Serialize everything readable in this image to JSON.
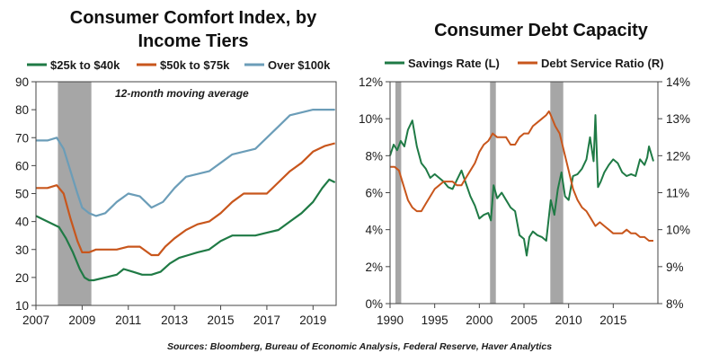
{
  "source_note": "Sources: Bloomberg, Bureau of Economic Analysis, Federal Reserve, Haver Analytics",
  "colors": {
    "green": "#1f7a45",
    "orange": "#c8561c",
    "blue": "#6b9db8",
    "recession": "#a6a6a6"
  },
  "chart_data": [
    {
      "type": "line",
      "title_lines": [
        "Consumer Comfort Index, by",
        "Income Tiers"
      ],
      "annotation": "12-month moving average",
      "xlim": [
        2007,
        2020
      ],
      "ylim": [
        10,
        90
      ],
      "x_ticks": [
        2007,
        2009,
        2011,
        2013,
        2015,
        2017,
        2019
      ],
      "x_tick_labels": [
        "2007",
        "2009",
        "2011",
        "2013",
        "2015",
        "2017",
        "2019"
      ],
      "y_ticks": [
        10,
        20,
        30,
        40,
        50,
        60,
        70,
        80,
        90
      ],
      "y_tick_labels": [
        "10",
        "20",
        "30",
        "40",
        "50",
        "60",
        "70",
        "80",
        "90"
      ],
      "legend_position": "top",
      "recessions": [
        [
          2007.95,
          2009.4
        ]
      ],
      "series": [
        {
          "name": "$25k to $40k",
          "color": "green",
          "x": [
            2007.0,
            2007.5,
            2008.0,
            2008.3,
            2008.6,
            2008.9,
            2009.1,
            2009.3,
            2009.5,
            2010.0,
            2010.5,
            2010.8,
            2011.2,
            2011.6,
            2012.0,
            2012.4,
            2012.8,
            2013.2,
            2013.6,
            2014.0,
            2014.5,
            2015.0,
            2015.5,
            2016.0,
            2016.5,
            2017.0,
            2017.5,
            2018.0,
            2018.5,
            2019.0,
            2019.4,
            2019.7,
            2019.95
          ],
          "y": [
            42,
            40,
            38,
            34,
            29,
            23,
            20,
            19,
            19,
            20,
            21,
            23,
            22,
            21,
            21,
            22,
            25,
            27,
            28,
            29,
            30,
            33,
            35,
            35,
            35,
            36,
            37,
            40,
            43,
            47,
            52,
            55,
            54
          ]
        },
        {
          "name": "$50k to $75k",
          "color": "orange",
          "x": [
            2007.0,
            2007.5,
            2007.9,
            2008.2,
            2008.5,
            2008.8,
            2009.0,
            2009.3,
            2009.6,
            2010.0,
            2010.5,
            2011.0,
            2011.5,
            2012.0,
            2012.3,
            2012.6,
            2013.0,
            2013.5,
            2014.0,
            2014.5,
            2015.0,
            2015.5,
            2016.0,
            2016.5,
            2017.0,
            2017.5,
            2018.0,
            2018.5,
            2019.0,
            2019.5,
            2019.95
          ],
          "y": [
            52,
            52,
            53,
            50,
            41,
            33,
            29,
            29,
            30,
            30,
            30,
            31,
            31,
            28,
            28,
            31,
            34,
            37,
            39,
            40,
            43,
            47,
            50,
            50,
            50,
            54,
            58,
            61,
            65,
            67,
            68
          ]
        },
        {
          "name": "Over $100k",
          "color": "blue",
          "x": [
            2007.0,
            2007.5,
            2007.9,
            2008.2,
            2008.5,
            2008.8,
            2009.0,
            2009.3,
            2009.6,
            2010.0,
            2010.5,
            2011.0,
            2011.5,
            2012.0,
            2012.5,
            2013.0,
            2013.5,
            2014.0,
            2014.5,
            2015.0,
            2015.5,
            2016.0,
            2016.5,
            2017.0,
            2017.5,
            2018.0,
            2018.5,
            2019.0,
            2019.5,
            2019.95
          ],
          "y": [
            69,
            69,
            70,
            66,
            58,
            50,
            45,
            43,
            42,
            43,
            47,
            50,
            49,
            45,
            47,
            52,
            56,
            57,
            58,
            61,
            64,
            65,
            66,
            70,
            74,
            78,
            79,
            80,
            80,
            80
          ]
        }
      ]
    },
    {
      "type": "line",
      "title": "Consumer Debt Capacity",
      "xlim": [
        1990,
        2020
      ],
      "x_ticks": [
        1990,
        1995,
        2000,
        2005,
        2010,
        2015
      ],
      "x_tick_labels": [
        "1990",
        "1995",
        "2000",
        "2005",
        "2010",
        "2015"
      ],
      "ylim_left": [
        0,
        12
      ],
      "ylim_right": [
        8,
        14
      ],
      "left_ticks": [
        0,
        2,
        4,
        6,
        8,
        10,
        12
      ],
      "left_tick_labels": [
        "0%",
        "2%",
        "4%",
        "6%",
        "8%",
        "10%",
        "12%"
      ],
      "right_ticks": [
        8,
        9,
        10,
        11,
        12,
        13,
        14
      ],
      "right_tick_labels": [
        "8%",
        "9%",
        "10%",
        "11%",
        "12%",
        "13%",
        "14%"
      ],
      "legend_position": "top",
      "recessions": [
        [
          1990.6,
          1991.25
        ],
        [
          2001.2,
          2001.85
        ],
        [
          2007.95,
          2009.4
        ]
      ],
      "series": [
        {
          "name": "Savings Rate (L)",
          "color": "green",
          "axis": "left",
          "x": [
            1990.0,
            1990.4,
            1990.8,
            1991.2,
            1991.6,
            1992.0,
            1992.5,
            1993.0,
            1993.5,
            1994.0,
            1994.5,
            1995.0,
            1995.5,
            1996.0,
            1996.5,
            1997.0,
            1997.5,
            1998.0,
            1998.5,
            1999.0,
            1999.5,
            2000.0,
            2000.5,
            2001.0,
            2001.3,
            2001.6,
            2002.0,
            2002.5,
            2003.0,
            2003.5,
            2004.0,
            2004.5,
            2005.0,
            2005.3,
            2005.6,
            2006.0,
            2006.5,
            2007.0,
            2007.5,
            2008.0,
            2008.4,
            2008.8,
            2009.2,
            2009.6,
            2010.0,
            2010.5,
            2011.0,
            2011.5,
            2012.0,
            2012.4,
            2012.8,
            2013.0,
            2013.3,
            2013.6,
            2014.0,
            2014.5,
            2015.0,
            2015.5,
            2016.0,
            2016.5,
            2017.0,
            2017.5,
            2018.0,
            2018.5,
            2018.8,
            2019.0,
            2019.5
          ],
          "y": [
            8.0,
            8.6,
            8.3,
            8.8,
            8.5,
            9.4,
            9.9,
            8.5,
            7.6,
            7.3,
            6.8,
            7.0,
            6.8,
            6.6,
            6.3,
            6.2,
            6.7,
            7.2,
            6.5,
            5.8,
            5.3,
            4.6,
            4.8,
            4.9,
            4.5,
            6.4,
            5.7,
            6.0,
            5.6,
            5.2,
            5.0,
            3.7,
            3.5,
            2.6,
            3.6,
            3.9,
            3.7,
            3.6,
            3.4,
            5.6,
            4.8,
            6.2,
            7.1,
            5.8,
            5.6,
            6.9,
            7.0,
            7.3,
            7.8,
            9.0,
            7.7,
            10.2,
            6.3,
            6.6,
            7.1,
            7.5,
            7.8,
            7.6,
            7.1,
            6.9,
            7.0,
            6.9,
            7.8,
            7.5,
            7.9,
            8.5,
            7.7
          ]
        },
        {
          "name": "Debt Service Ratio (R)",
          "color": "orange",
          "axis": "right",
          "x": [
            1990.0,
            1990.5,
            1991.0,
            1991.5,
            1992.0,
            1992.5,
            1993.0,
            1993.5,
            1994.0,
            1994.5,
            1995.0,
            1995.5,
            1996.0,
            1996.5,
            1997.0,
            1997.5,
            1998.0,
            1998.5,
            1999.0,
            1999.5,
            2000.0,
            2000.5,
            2001.0,
            2001.5,
            2002.0,
            2002.5,
            2003.0,
            2003.5,
            2004.0,
            2004.5,
            2005.0,
            2005.5,
            2006.0,
            2006.5,
            2007.0,
            2007.5,
            2007.8,
            2008.0,
            2008.5,
            2009.0,
            2009.5,
            2010.0,
            2010.5,
            2011.0,
            2011.5,
            2012.0,
            2012.5,
            2013.0,
            2013.5,
            2014.0,
            2014.5,
            2015.0,
            2015.5,
            2016.0,
            2016.5,
            2017.0,
            2017.5,
            2018.0,
            2018.5,
            2019.0,
            2019.5
          ],
          "y": [
            11.7,
            11.7,
            11.6,
            11.2,
            10.8,
            10.6,
            10.5,
            10.5,
            10.7,
            10.9,
            11.1,
            11.2,
            11.3,
            11.3,
            11.3,
            11.2,
            11.2,
            11.4,
            11.6,
            11.8,
            12.1,
            12.3,
            12.4,
            12.6,
            12.5,
            12.5,
            12.5,
            12.3,
            12.3,
            12.5,
            12.6,
            12.6,
            12.8,
            12.9,
            13.0,
            13.1,
            13.2,
            13.1,
            12.8,
            12.6,
            12.1,
            11.6,
            11.1,
            10.8,
            10.6,
            10.5,
            10.3,
            10.1,
            10.2,
            10.1,
            10.0,
            9.9,
            9.9,
            9.9,
            10.0,
            9.9,
            9.9,
            9.8,
            9.8,
            9.7,
            9.7
          ]
        }
      ]
    }
  ]
}
